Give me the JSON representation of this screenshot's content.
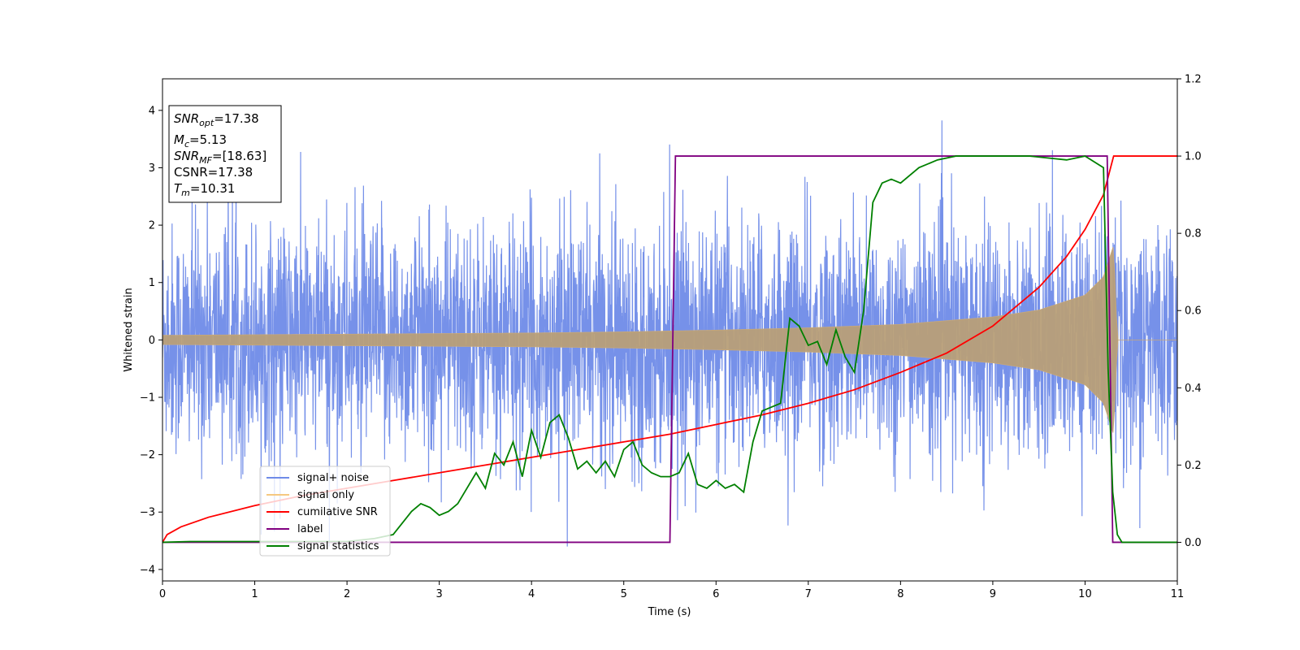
{
  "chart_data": {
    "type": "line",
    "xlabel": "Time (s)",
    "ylabel": "Whitened strain",
    "xlim": [
      0,
      11
    ],
    "ylim": [
      -4.2,
      4.55
    ],
    "y2lim": [
      -0.1,
      1.2
    ],
    "x_ticks": [
      0,
      1,
      2,
      3,
      4,
      5,
      6,
      7,
      8,
      9,
      10,
      11
    ],
    "y_ticks": [
      -4,
      -3,
      -2,
      -1,
      0,
      1,
      2,
      3,
      4
    ],
    "y2_ticks": [
      0.0,
      0.2,
      0.4,
      0.6,
      0.8,
      1.0,
      1.2
    ],
    "x_tick_labels": [
      "0",
      "1",
      "2",
      "3",
      "4",
      "5",
      "6",
      "7",
      "8",
      "9",
      "10",
      "11"
    ],
    "y_tick_labels": [
      "−4",
      "−3",
      "−2",
      "−1",
      "0",
      "1",
      "2",
      "3",
      "4"
    ],
    "y2_tick_labels": [
      "0.0",
      "0.2",
      "0.4",
      "0.6",
      "0.8",
      "1.0",
      "1.2"
    ],
    "legend_position": "lower-left",
    "legend": [
      {
        "label": "signal+ noise",
        "color": "#6f8be8"
      },
      {
        "label": "signal only",
        "color": "#f5c880"
      },
      {
        "label": "cumilative SNR",
        "color": "#ff0000"
      },
      {
        "label": "label",
        "color": "#800080"
      },
      {
        "label": "signal statistics",
        "color": "#008000"
      }
    ],
    "info_box": [
      {
        "base": "SNR",
        "sub": "opt",
        "value": "=17.38"
      },
      {
        "base": "M",
        "sub": "c",
        "value": "=5.13"
      },
      {
        "base": "SNR",
        "sub": "MF",
        "value": "=[18.63]"
      },
      {
        "base": "CSNR",
        "sub": "",
        "value": "=17.38"
      },
      {
        "base": "T",
        "sub": "m",
        "value": "=10.31"
      }
    ],
    "series": [
      {
        "name": "signal+ noise",
        "axis": "left",
        "color": "#6f8be8",
        "note_points": "dense random noise; sigma ~1, peaks up to ~4.15",
        "noise_std": 1.0
      },
      {
        "name": "signal only",
        "axis": "left",
        "color": "#f5c880",
        "envelope": {
          "t": [
            0,
            1,
            2,
            3,
            4,
            5,
            6,
            7,
            8,
            9,
            9.5,
            10.0,
            10.2,
            10.31,
            10.35,
            11
          ],
          "amp": [
            0.08,
            0.09,
            0.1,
            0.11,
            0.12,
            0.14,
            0.17,
            0.21,
            0.27,
            0.4,
            0.52,
            0.78,
            1.1,
            1.65,
            0.0,
            0.0
          ]
        }
      },
      {
        "name": "cumilative SNR",
        "axis": "right",
        "color": "#ff0000",
        "x": [
          0,
          0.05,
          0.2,
          0.5,
          1,
          1.5,
          2,
          2.5,
          3,
          3.5,
          4,
          4.5,
          5,
          5.5,
          6,
          6.5,
          7,
          7.5,
          8,
          8.5,
          9,
          9.5,
          9.8,
          10.0,
          10.2,
          10.31,
          11
        ],
        "y": [
          0.0,
          0.02,
          0.04,
          0.065,
          0.095,
          0.12,
          0.14,
          0.16,
          0.18,
          0.2,
          0.22,
          0.24,
          0.26,
          0.28,
          0.305,
          0.33,
          0.36,
          0.395,
          0.44,
          0.49,
          0.56,
          0.66,
          0.74,
          0.81,
          0.9,
          1.0,
          1.0
        ]
      },
      {
        "name": "label",
        "axis": "right",
        "color": "#800080",
        "x": [
          0,
          5.5,
          5.56,
          10.24,
          10.3,
          11
        ],
        "y": [
          0,
          0,
          1,
          1,
          0,
          0
        ]
      },
      {
        "name": "signal statistics",
        "axis": "right",
        "color": "#008000",
        "x": [
          0,
          0.3,
          1,
          2.0,
          2.3,
          2.5,
          2.6,
          2.7,
          2.8,
          2.9,
          3.0,
          3.1,
          3.2,
          3.3,
          3.4,
          3.5,
          3.6,
          3.7,
          3.8,
          3.9,
          4.0,
          4.1,
          4.2,
          4.3,
          4.4,
          4.5,
          4.6,
          4.7,
          4.8,
          4.9,
          5.0,
          5.1,
          5.2,
          5.3,
          5.4,
          5.5,
          5.6,
          5.7,
          5.8,
          5.9,
          6.0,
          6.1,
          6.2,
          6.3,
          6.4,
          6.5,
          6.6,
          6.7,
          6.8,
          6.9,
          7.0,
          7.1,
          7.2,
          7.3,
          7.4,
          7.5,
          7.6,
          7.7,
          7.8,
          7.9,
          8.0,
          8.2,
          8.4,
          8.6,
          9.0,
          9.4,
          9.8,
          10.0,
          10.2,
          10.25,
          10.3,
          10.35,
          10.4,
          10.5,
          11
        ],
        "y": [
          0.0,
          0.002,
          0.002,
          0.002,
          0.01,
          0.02,
          0.05,
          0.08,
          0.1,
          0.09,
          0.07,
          0.08,
          0.1,
          0.14,
          0.18,
          0.14,
          0.23,
          0.2,
          0.26,
          0.17,
          0.29,
          0.22,
          0.31,
          0.33,
          0.27,
          0.19,
          0.21,
          0.18,
          0.21,
          0.17,
          0.24,
          0.26,
          0.2,
          0.18,
          0.17,
          0.17,
          0.18,
          0.23,
          0.15,
          0.14,
          0.16,
          0.14,
          0.15,
          0.13,
          0.26,
          0.34,
          0.35,
          0.36,
          0.58,
          0.56,
          0.51,
          0.52,
          0.46,
          0.55,
          0.48,
          0.44,
          0.6,
          0.88,
          0.93,
          0.94,
          0.93,
          0.97,
          0.99,
          1.0,
          1.0,
          1.0,
          0.99,
          1.0,
          0.97,
          0.45,
          0.13,
          0.02,
          0.0,
          0.0,
          0.0
        ]
      }
    ]
  }
}
